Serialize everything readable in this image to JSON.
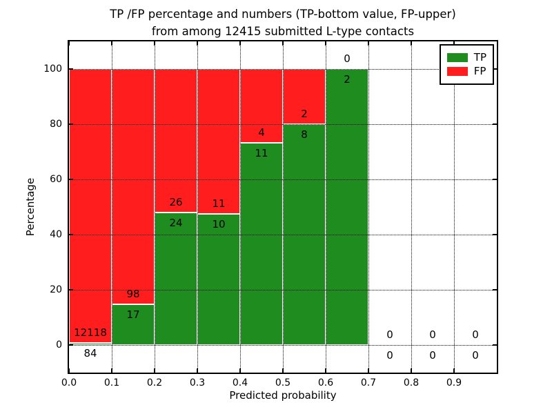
{
  "title": {
    "line1": "TP /FP percentage and numbers (TP-bottom value, FP-upper)",
    "line2": "from among 12415 submitted L-type contacts"
  },
  "axes": {
    "xlabel": "Predicted probability",
    "ylabel": "Percentage",
    "xlim": [
      0.0,
      1.0
    ],
    "ylim": [
      -10,
      110
    ],
    "grid": true,
    "x_ticks": [
      {
        "label": "0.0",
        "value": 0.0
      },
      {
        "label": "0.1",
        "value": 0.1
      },
      {
        "label": "0.2",
        "value": 0.2
      },
      {
        "label": "0.3",
        "value": 0.3
      },
      {
        "label": "0.4",
        "value": 0.4
      },
      {
        "label": "0.5",
        "value": 0.5
      },
      {
        "label": "0.6",
        "value": 0.6
      },
      {
        "label": "0.7",
        "value": 0.7
      },
      {
        "label": "0.8",
        "value": 0.8
      },
      {
        "label": "0.9",
        "value": 0.9
      }
    ],
    "y_ticks": [
      {
        "label": "0",
        "value": 0
      },
      {
        "label": "20",
        "value": 20
      },
      {
        "label": "40",
        "value": 40
      },
      {
        "label": "60",
        "value": 60
      },
      {
        "label": "80",
        "value": 80
      },
      {
        "label": "100",
        "value": 100
      }
    ]
  },
  "legend": {
    "position": "upper right",
    "items": [
      {
        "label": "TP",
        "color": "#1e8c1e"
      },
      {
        "label": "FP",
        "color": "#ff1d1d"
      }
    ]
  },
  "chart_data": {
    "type": "bar",
    "stacked": true,
    "normalized": "each bar scaled to 100%, TP on bottom, FP on top",
    "bin_width": 0.1,
    "bins": [
      "0.0-0.1",
      "0.1-0.2",
      "0.2-0.3",
      "0.3-0.4",
      "0.4-0.5",
      "0.5-0.6",
      "0.6-0.7",
      "0.7-0.8",
      "0.8-0.9",
      "0.9-1.0"
    ],
    "series": [
      {
        "name": "TP",
        "color": "#1e8c1e",
        "counts": [
          84,
          17,
          24,
          10,
          11,
          8,
          2,
          0,
          0,
          0
        ]
      },
      {
        "name": "FP",
        "color": "#ff1d1d",
        "counts": [
          12118,
          98,
          26,
          11,
          4,
          2,
          0,
          0,
          0,
          0
        ]
      }
    ],
    "total_contacts": 12415
  }
}
